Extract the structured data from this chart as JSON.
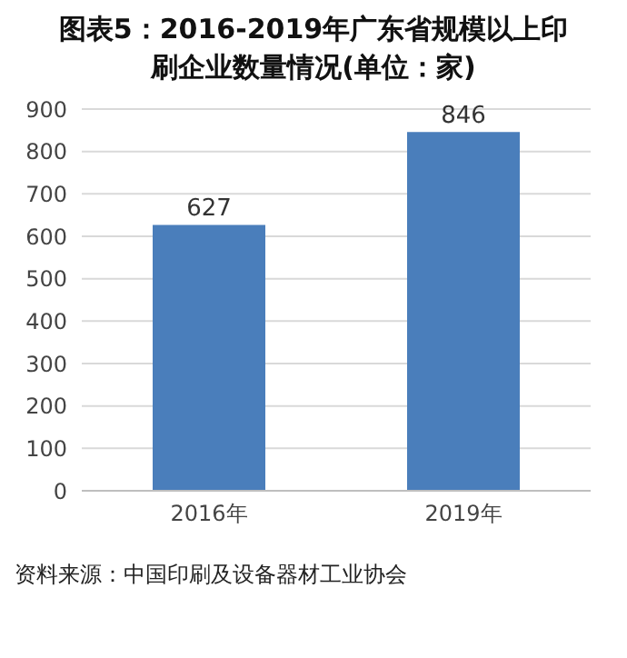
{
  "chart_data": {
    "type": "bar",
    "title": "图表5：2016-2019年广东省规模以上印刷企业数量情况(单位：家)",
    "categories": [
      "2016年",
      "2019年"
    ],
    "values": [
      627,
      846
    ],
    "color": "#4a7ebb",
    "ylim": [
      0,
      900
    ],
    "yticks": [
      0,
      100,
      200,
      300,
      400,
      500,
      600,
      700,
      800,
      900
    ],
    "grid": "y",
    "data_labels": true,
    "annotations": [
      "资料来源：中国印刷及设备器材工业协会"
    ]
  }
}
